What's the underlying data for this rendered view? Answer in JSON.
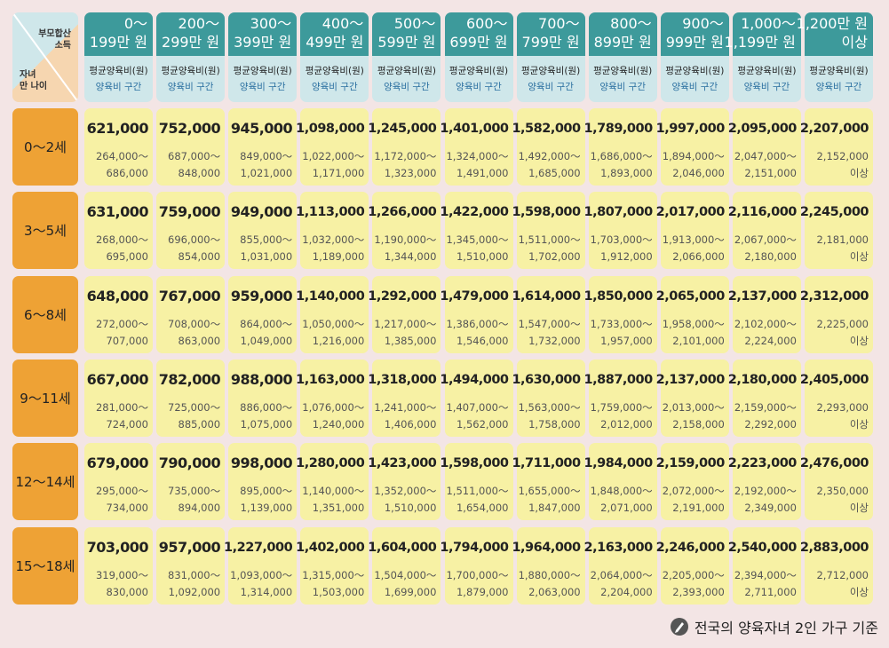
{
  "corner": {
    "top": [
      "부모합산",
      "소득"
    ],
    "bottom": [
      "자녀",
      "만 나이"
    ]
  },
  "table": {
    "columns": [
      {
        "title": [
          "0～",
          "199만 원"
        ],
        "sub": [
          "평균양육비(원)",
          "양육비 구간"
        ]
      },
      {
        "title": [
          "200～",
          "299만 원"
        ],
        "sub": [
          "평균양육비(원)",
          "양육비 구간"
        ]
      },
      {
        "title": [
          "300～",
          "399만 원"
        ],
        "sub": [
          "평균양육비(원)",
          "양육비 구간"
        ]
      },
      {
        "title": [
          "400～",
          "499만 원"
        ],
        "sub": [
          "평균양육비(원)",
          "양육비 구간"
        ]
      },
      {
        "title": [
          "500～",
          "599만 원"
        ],
        "sub": [
          "평균양육비(원)",
          "양육비 구간"
        ]
      },
      {
        "title": [
          "600～",
          "699만 원"
        ],
        "sub": [
          "평균양육비(원)",
          "양육비 구간"
        ]
      },
      {
        "title": [
          "700～",
          "799만 원"
        ],
        "sub": [
          "평균양육비(원)",
          "양육비 구간"
        ]
      },
      {
        "title": [
          "800～",
          "899만 원"
        ],
        "sub": [
          "평균양육비(원)",
          "양육비 구간"
        ]
      },
      {
        "title": [
          "900～",
          "999만 원"
        ],
        "sub": [
          "평균양육비(원)",
          "양육비 구간"
        ]
      },
      {
        "title": [
          "1,000～",
          "1,199만 원"
        ],
        "sub": [
          "평균양육비(원)",
          "양육비 구간"
        ]
      },
      {
        "title": [
          "1,200만 원",
          "이상"
        ],
        "sub": [
          "평균양육비(원)",
          "양육비 구간"
        ]
      }
    ],
    "rows": [
      {
        "age": "0～2세",
        "cells": [
          {
            "avg": "621,000",
            "range": [
              "264,000～",
              "686,000"
            ]
          },
          {
            "avg": "752,000",
            "range": [
              "687,000～",
              "848,000"
            ]
          },
          {
            "avg": "945,000",
            "range": [
              "849,000～",
              "1,021,000"
            ]
          },
          {
            "avg": "1,098,000",
            "range": [
              "1,022,000～",
              "1,171,000"
            ]
          },
          {
            "avg": "1,245,000",
            "range": [
              "1,172,000～",
              "1,323,000"
            ]
          },
          {
            "avg": "1,401,000",
            "range": [
              "1,324,000～",
              "1,491,000"
            ]
          },
          {
            "avg": "1,582,000",
            "range": [
              "1,492,000～",
              "1,685,000"
            ]
          },
          {
            "avg": "1,789,000",
            "range": [
              "1,686,000～",
              "1,893,000"
            ]
          },
          {
            "avg": "1,997,000",
            "range": [
              "1,894,000～",
              "2,046,000"
            ]
          },
          {
            "avg": "2,095,000",
            "range": [
              "2,047,000～",
              "2,151,000"
            ]
          },
          {
            "avg": "2,207,000",
            "range": [
              "2,152,000",
              "이상"
            ]
          }
        ]
      },
      {
        "age": "3～5세",
        "cells": [
          {
            "avg": "631,000",
            "range": [
              "268,000～",
              "695,000"
            ]
          },
          {
            "avg": "759,000",
            "range": [
              "696,000～",
              "854,000"
            ]
          },
          {
            "avg": "949,000",
            "range": [
              "855,000～",
              "1,031,000"
            ]
          },
          {
            "avg": "1,113,000",
            "range": [
              "1,032,000～",
              "1,189,000"
            ]
          },
          {
            "avg": "1,266,000",
            "range": [
              "1,190,000～",
              "1,344,000"
            ]
          },
          {
            "avg": "1,422,000",
            "range": [
              "1,345,000～",
              "1,510,000"
            ]
          },
          {
            "avg": "1,598,000",
            "range": [
              "1,511,000～",
              "1,702,000"
            ]
          },
          {
            "avg": "1,807,000",
            "range": [
              "1,703,000～",
              "1,912,000"
            ]
          },
          {
            "avg": "2,017,000",
            "range": [
              "1,913,000～",
              "2,066,000"
            ]
          },
          {
            "avg": "2,116,000",
            "range": [
              "2,067,000～",
              "2,180,000"
            ]
          },
          {
            "avg": "2,245,000",
            "range": [
              "2,181,000",
              "이상"
            ]
          }
        ]
      },
      {
        "age": "6～8세",
        "cells": [
          {
            "avg": "648,000",
            "range": [
              "272,000～",
              "707,000"
            ]
          },
          {
            "avg": "767,000",
            "range": [
              "708,000～",
              "863,000"
            ]
          },
          {
            "avg": "959,000",
            "range": [
              "864,000～",
              "1,049,000"
            ]
          },
          {
            "avg": "1,140,000",
            "range": [
              "1,050,000～",
              "1,216,000"
            ]
          },
          {
            "avg": "1,292,000",
            "range": [
              "1,217,000～",
              "1,385,000"
            ]
          },
          {
            "avg": "1,479,000",
            "range": [
              "1,386,000～",
              "1,546,000"
            ]
          },
          {
            "avg": "1,614,000",
            "range": [
              "1,547,000～",
              "1,732,000"
            ]
          },
          {
            "avg": "1,850,000",
            "range": [
              "1,733,000～",
              "1,957,000"
            ]
          },
          {
            "avg": "2,065,000",
            "range": [
              "1,958,000～",
              "2,101,000"
            ]
          },
          {
            "avg": "2,137,000",
            "range": [
              "2,102,000～",
              "2,224,000"
            ]
          },
          {
            "avg": "2,312,000",
            "range": [
              "2,225,000",
              "이상"
            ]
          }
        ]
      },
      {
        "age": "9～11세",
        "cells": [
          {
            "avg": "667,000",
            "range": [
              "281,000～",
              "724,000"
            ]
          },
          {
            "avg": "782,000",
            "range": [
              "725,000～",
              "885,000"
            ]
          },
          {
            "avg": "988,000",
            "range": [
              "886,000～",
              "1,075,000"
            ]
          },
          {
            "avg": "1,163,000",
            "range": [
              "1,076,000～",
              "1,240,000"
            ]
          },
          {
            "avg": "1,318,000",
            "range": [
              "1,241,000～",
              "1,406,000"
            ]
          },
          {
            "avg": "1,494,000",
            "range": [
              "1,407,000～",
              "1,562,000"
            ]
          },
          {
            "avg": "1,630,000",
            "range": [
              "1,563,000～",
              "1,758,000"
            ]
          },
          {
            "avg": "1,887,000",
            "range": [
              "1,759,000～",
              "2,012,000"
            ]
          },
          {
            "avg": "2,137,000",
            "range": [
              "2,013,000～",
              "2,158,000"
            ]
          },
          {
            "avg": "2,180,000",
            "range": [
              "2,159,000～",
              "2,292,000"
            ]
          },
          {
            "avg": "2,405,000",
            "range": [
              "2,293,000",
              "이상"
            ]
          }
        ]
      },
      {
        "age": "12～14세",
        "cells": [
          {
            "avg": "679,000",
            "range": [
              "295,000～",
              "734,000"
            ]
          },
          {
            "avg": "790,000",
            "range": [
              "735,000～",
              "894,000"
            ]
          },
          {
            "avg": "998,000",
            "range": [
              "895,000～",
              "1,139,000"
            ]
          },
          {
            "avg": "1,280,000",
            "range": [
              "1,140,000～",
              "1,351,000"
            ]
          },
          {
            "avg": "1,423,000",
            "range": [
              "1,352,000～",
              "1,510,000"
            ]
          },
          {
            "avg": "1,598,000",
            "range": [
              "1,511,000～",
              "1,654,000"
            ]
          },
          {
            "avg": "1,711,000",
            "range": [
              "1,655,000～",
              "1,847,000"
            ]
          },
          {
            "avg": "1,984,000",
            "range": [
              "1,848,000～",
              "2,071,000"
            ]
          },
          {
            "avg": "2,159,000",
            "range": [
              "2,072,000～",
              "2,191,000"
            ]
          },
          {
            "avg": "2,223,000",
            "range": [
              "2,192,000～",
              "2,349,000"
            ]
          },
          {
            "avg": "2,476,000",
            "range": [
              "2,350,000",
              "이상"
            ]
          }
        ]
      },
      {
        "age": "15～18세",
        "cells": [
          {
            "avg": "703,000",
            "range": [
              "319,000～",
              "830,000"
            ]
          },
          {
            "avg": "957,000",
            "range": [
              "831,000～",
              "1,092,000"
            ]
          },
          {
            "avg": "1,227,000",
            "range": [
              "1,093,000～",
              "1,314,000"
            ]
          },
          {
            "avg": "1,402,000",
            "range": [
              "1,315,000～",
              "1,503,000"
            ]
          },
          {
            "avg": "1,604,000",
            "range": [
              "1,504,000～",
              "1,699,000"
            ]
          },
          {
            "avg": "1,794,000",
            "range": [
              "1,700,000～",
              "1,879,000"
            ]
          },
          {
            "avg": "1,964,000",
            "range": [
              "1,880,000～",
              "2,063,000"
            ]
          },
          {
            "avg": "2,163,000",
            "range": [
              "2,064,000～",
              "2,204,000"
            ]
          },
          {
            "avg": "2,246,000",
            "range": [
              "2,205,000～",
              "2,393,000"
            ]
          },
          {
            "avg": "2,540,000",
            "range": [
              "2,394,000～",
              "2,711,000"
            ]
          },
          {
            "avg": "2,883,000",
            "range": [
              "2,712,000",
              "이상"
            ]
          }
        ]
      }
    ]
  },
  "footer": "전국의 양육자녀 2인 가구 기준"
}
